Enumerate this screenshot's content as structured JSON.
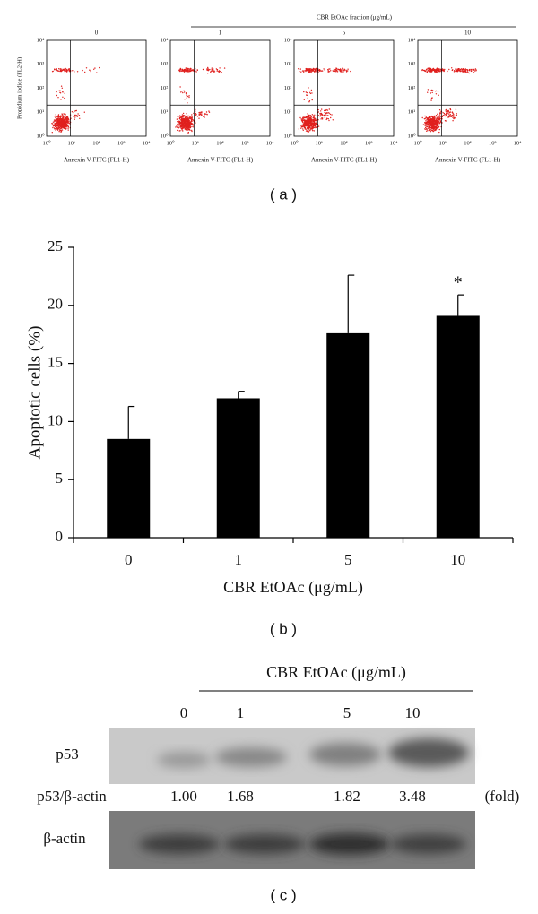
{
  "panel_a": {
    "group_label": "CBR EtOAc fraction (μg/mL)",
    "plots": [
      {
        "title": "0"
      },
      {
        "title": "1"
      },
      {
        "title": "5"
      },
      {
        "title": "10"
      }
    ],
    "x_label": "Annexin V-FITC (FL1-H)",
    "y_label": "Propidium iodide (FL2-H)",
    "xticks": [
      "10⁰",
      "10¹",
      "10²",
      "10³",
      "10⁴"
    ],
    "yticks": [
      "10⁰",
      "10¹",
      "10²",
      "10³",
      "10⁴"
    ],
    "caption": "( a )"
  },
  "chart_data": {
    "type": "bar",
    "categories": [
      "0",
      "1",
      "5",
      "10"
    ],
    "values": [
      8.5,
      12,
      17.6,
      19.1
    ],
    "errors": [
      2.8,
      0.6,
      5,
      1.8
    ],
    "color": "#000000",
    "ylim": [
      0,
      25
    ],
    "yticks": [
      0,
      5,
      10,
      15,
      20,
      25
    ],
    "y_label": "Apoptotic cells (%)",
    "x_label": "CBR EtOAc (μg/mL)",
    "annotations": [
      {
        "category": "10",
        "text": "*"
      }
    ],
    "caption": "( b )"
  },
  "panel_c": {
    "header": "CBR EtOAc (μg/mL)",
    "lanes": [
      "0",
      "1",
      "5",
      "10"
    ],
    "row_top": "p53",
    "ratio_label": "p53/β-actin",
    "ratios": [
      "1.00",
      "1.68",
      "1.82",
      "3.48"
    ],
    "ratio_unit": "(fold)",
    "row_bottom": "β-actin",
    "caption": "( c )"
  }
}
